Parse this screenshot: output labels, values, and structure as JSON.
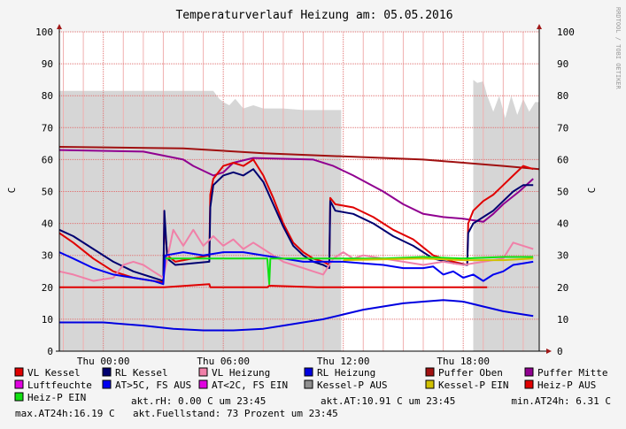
{
  "chart_data": {
    "type": "line",
    "title": "Temperaturverlauf Heizung am: 05.05.2016",
    "watermark": "RRDTOOL / TOBI OETIKER",
    "ylabel_left": "C",
    "ylabel_right": "C",
    "ylim": [
      0,
      100
    ],
    "xlim_hours": [
      -2.2,
      21.8
    ],
    "y_ticks": [
      "0",
      "10",
      "20",
      "30",
      "40",
      "50",
      "60",
      "70",
      "80",
      "90",
      "100"
    ],
    "x_ticks": [
      {
        "label": "Thu 00:00",
        "hour": 0
      },
      {
        "label": "Thu 06:00",
        "hour": 6
      },
      {
        "label": "Thu 12:00",
        "hour": 12
      },
      {
        "label": "Thu 18:00",
        "hour": 18
      }
    ],
    "grid": true,
    "colors": {
      "background": "#f4f4f4",
      "canvas": "#ffffff",
      "grid_minor": "#f0b0b0",
      "grid_major": "#e07070",
      "area": "#d6d6d6",
      "axis": "#000000",
      "arrow": "#a01818"
    },
    "area_series": {
      "name": "Fuellstand",
      "color": "#d6d6d6",
      "points": [
        [
          -2.2,
          81.5
        ],
        [
          5.5,
          81.5
        ],
        [
          5.8,
          79
        ],
        [
          6.0,
          78
        ],
        [
          6.3,
          77
        ],
        [
          6.6,
          79
        ],
        [
          7.0,
          76
        ],
        [
          7.5,
          77
        ],
        [
          8.0,
          76
        ],
        [
          9.0,
          76
        ],
        [
          10.0,
          75.5
        ],
        [
          11.9,
          75.5
        ],
        [
          11.9,
          0
        ],
        [
          18.5,
          0
        ],
        [
          18.5,
          85
        ],
        [
          18.7,
          84
        ],
        [
          19.0,
          84.5
        ],
        [
          19.2,
          80
        ],
        [
          19.5,
          75
        ],
        [
          19.8,
          80
        ],
        [
          20.1,
          73
        ],
        [
          20.4,
          80
        ],
        [
          20.7,
          74
        ],
        [
          21.0,
          79
        ],
        [
          21.3,
          75
        ],
        [
          21.6,
          78
        ],
        [
          21.8,
          78
        ]
      ]
    },
    "series": [
      {
        "name": "Puffer Oben",
        "color": "#a01010",
        "points": [
          [
            -2.2,
            64
          ],
          [
            4,
            63.5
          ],
          [
            8,
            62
          ],
          [
            12,
            61
          ],
          [
            16,
            60
          ],
          [
            20,
            58
          ],
          [
            21.8,
            57
          ]
        ]
      },
      {
        "name": "Puffer Mitte",
        "color": "#900090",
        "points": [
          [
            -2.2,
            63
          ],
          [
            2,
            62.5
          ],
          [
            4,
            60
          ],
          [
            4.5,
            58
          ],
          [
            5.5,
            55
          ],
          [
            6.0,
            56
          ],
          [
            6.5,
            59
          ],
          [
            7.5,
            60.5
          ],
          [
            10.5,
            60
          ],
          [
            11.5,
            58
          ],
          [
            12.5,
            55
          ],
          [
            14,
            50
          ],
          [
            15,
            46
          ],
          [
            16,
            43
          ],
          [
            17,
            42
          ],
          [
            18,
            41.5
          ],
          [
            19.0,
            40.5
          ],
          [
            19.5,
            43
          ],
          [
            20,
            46
          ],
          [
            20.8,
            50
          ],
          [
            21.5,
            54
          ]
        ]
      },
      {
        "name": "VL Kessel",
        "color": "#e00000",
        "points": [
          [
            -2.2,
            37
          ],
          [
            -1.5,
            34
          ],
          [
            -0.5,
            29
          ],
          [
            0.5,
            25
          ],
          [
            1.5,
            23
          ],
          [
            2.5,
            22
          ],
          [
            3.0,
            21.5
          ],
          [
            3.05,
            41
          ],
          [
            3.2,
            30
          ],
          [
            3.6,
            28
          ],
          [
            5.3,
            30
          ],
          [
            5.35,
            49
          ],
          [
            5.5,
            54
          ],
          [
            6.0,
            58
          ],
          [
            6.5,
            59
          ],
          [
            7.0,
            58
          ],
          [
            7.5,
            60
          ],
          [
            8.0,
            55
          ],
          [
            8.5,
            48
          ],
          [
            9.0,
            40
          ],
          [
            9.5,
            34
          ],
          [
            10.0,
            31
          ],
          [
            10.5,
            29
          ],
          [
            11.0,
            28
          ],
          [
            11.3,
            27
          ],
          [
            11.35,
            48
          ],
          [
            11.6,
            46
          ],
          [
            12.5,
            45
          ],
          [
            13.5,
            42
          ],
          [
            14.5,
            38
          ],
          [
            15.5,
            35
          ],
          [
            16.5,
            30
          ],
          [
            17.5,
            28
          ],
          [
            18.2,
            27
          ],
          [
            18.25,
            40
          ],
          [
            18.5,
            44
          ],
          [
            19.0,
            47
          ],
          [
            19.5,
            49
          ],
          [
            20.0,
            52
          ],
          [
            20.5,
            55
          ],
          [
            21.0,
            58
          ],
          [
            21.5,
            57
          ]
        ]
      },
      {
        "name": "RL Kessel",
        "color": "#000070",
        "points": [
          [
            -2.2,
            38
          ],
          [
            -1.5,
            36
          ],
          [
            -0.5,
            32
          ],
          [
            0.5,
            28
          ],
          [
            1.5,
            25
          ],
          [
            2.5,
            23
          ],
          [
            3.0,
            22
          ],
          [
            3.05,
            44
          ],
          [
            3.2,
            29
          ],
          [
            3.6,
            27
          ],
          [
            5.3,
            28
          ],
          [
            5.35,
            45
          ],
          [
            5.5,
            52
          ],
          [
            6.0,
            55
          ],
          [
            6.5,
            56
          ],
          [
            7.0,
            55
          ],
          [
            7.5,
            57
          ],
          [
            8.0,
            53
          ],
          [
            8.5,
            46
          ],
          [
            9.0,
            39
          ],
          [
            9.5,
            33
          ],
          [
            10.0,
            30
          ],
          [
            10.5,
            28
          ],
          [
            11.0,
            27
          ],
          [
            11.3,
            26
          ],
          [
            11.35,
            47
          ],
          [
            11.6,
            44
          ],
          [
            12.5,
            43
          ],
          [
            13.5,
            40
          ],
          [
            14.5,
            36
          ],
          [
            15.5,
            33
          ],
          [
            16.5,
            29
          ],
          [
            17.5,
            27.5
          ],
          [
            18.2,
            27
          ],
          [
            18.25,
            37
          ],
          [
            18.5,
            40
          ],
          [
            19.0,
            42
          ],
          [
            19.5,
            44
          ],
          [
            20.0,
            47
          ],
          [
            20.5,
            50
          ],
          [
            21.0,
            52
          ],
          [
            21.5,
            52
          ]
        ]
      },
      {
        "name": "VL Heizung",
        "color": "#f080a8",
        "points": [
          [
            -2.2,
            25
          ],
          [
            -1.5,
            24
          ],
          [
            -0.5,
            22
          ],
          [
            0.5,
            23
          ],
          [
            1.0,
            27
          ],
          [
            1.5,
            28
          ],
          [
            2.0,
            27
          ],
          [
            2.5,
            25
          ],
          [
            3.0,
            23
          ],
          [
            3.5,
            38
          ],
          [
            4.0,
            33
          ],
          [
            4.5,
            38
          ],
          [
            5.0,
            33
          ],
          [
            5.5,
            36
          ],
          [
            6.0,
            33
          ],
          [
            6.5,
            35
          ],
          [
            7.0,
            32
          ],
          [
            7.5,
            34
          ],
          [
            8.0,
            32
          ],
          [
            8.5,
            30
          ],
          [
            9.0,
            28
          ],
          [
            9.5,
            27
          ],
          [
            10.0,
            26
          ],
          [
            10.5,
            25
          ],
          [
            11.0,
            24
          ],
          [
            11.5,
            29
          ],
          [
            12.0,
            31
          ],
          [
            12.5,
            29
          ],
          [
            13.0,
            30
          ],
          [
            14.0,
            29
          ],
          [
            15.0,
            28
          ],
          [
            16.0,
            27
          ],
          [
            17.0,
            28
          ],
          [
            18.0,
            27
          ],
          [
            19.0,
            28
          ],
          [
            20.0,
            29
          ],
          [
            20.5,
            34
          ],
          [
            21.0,
            33
          ],
          [
            21.5,
            32
          ]
        ]
      },
      {
        "name": "RL Heizung",
        "color": "#0000e0",
        "points": [
          [
            -2.2,
            9
          ],
          [
            0,
            9
          ],
          [
            2,
            8
          ],
          [
            3.5,
            7
          ],
          [
            5,
            6.5
          ],
          [
            6.5,
            6.5
          ],
          [
            8,
            7
          ],
          [
            9,
            8
          ],
          [
            10,
            9
          ],
          [
            11,
            10
          ],
          [
            12,
            11.5
          ],
          [
            13,
            13
          ],
          [
            14,
            14
          ],
          [
            15,
            15
          ],
          [
            16,
            15.5
          ],
          [
            17,
            16
          ],
          [
            18,
            15.5
          ],
          [
            19,
            14
          ],
          [
            20,
            12.5
          ],
          [
            21,
            11.5
          ],
          [
            21.5,
            11
          ]
        ]
      },
      {
        "name": "AT>5C, FS AUS",
        "color": "#0000f0",
        "points": [
          [
            -2.2,
            31
          ],
          [
            -1.5,
            29
          ],
          [
            -0.5,
            26
          ],
          [
            0.5,
            24
          ],
          [
            1.5,
            23
          ],
          [
            2.5,
            22
          ],
          [
            3.0,
            21
          ],
          [
            3.1,
            30
          ],
          [
            4.0,
            31
          ],
          [
            5.0,
            30
          ],
          [
            6.0,
            31
          ],
          [
            7.0,
            31
          ],
          [
            8.0,
            30
          ],
          [
            9.0,
            29
          ],
          [
            10.0,
            28
          ],
          [
            11.0,
            28
          ],
          [
            12.0,
            28
          ],
          [
            13.0,
            27.5
          ],
          [
            14.0,
            27
          ],
          [
            15.0,
            26
          ],
          [
            16.0,
            26
          ],
          [
            16.5,
            26.5
          ],
          [
            17.0,
            24
          ],
          [
            17.5,
            25
          ],
          [
            18.0,
            23
          ],
          [
            18.5,
            24
          ],
          [
            19.0,
            22
          ],
          [
            19.5,
            24
          ],
          [
            20.0,
            25
          ],
          [
            20.5,
            27
          ],
          [
            21.0,
            27.5
          ],
          [
            21.5,
            28
          ]
        ]
      },
      {
        "name": "Heiz-P EIN",
        "color": "#10e010",
        "points": [
          [
            3.1,
            29
          ],
          [
            7.3,
            29
          ],
          [
            8.2,
            29
          ],
          [
            8.3,
            21
          ],
          [
            8.35,
            29
          ],
          [
            12.0,
            29
          ],
          [
            14.0,
            29
          ],
          [
            16.0,
            29.5
          ],
          [
            18.0,
            29
          ],
          [
            20.0,
            29.5
          ],
          [
            21.5,
            29.5
          ]
        ]
      },
      {
        "name": "Kessel-P EIN",
        "color": "#d0c000",
        "points": [
          [
            12.0,
            28.5
          ],
          [
            16.0,
            29.0
          ],
          [
            18.0,
            28.5
          ],
          [
            20.0,
            28.5
          ],
          [
            21.5,
            29.0
          ]
        ]
      },
      {
        "name": "Heiz-P AUS",
        "color": "#e00000",
        "points": [
          [
            -2.2,
            20
          ],
          [
            3.0,
            20
          ],
          [
            3.05,
            20
          ],
          [
            5.3,
            21
          ],
          [
            5.35,
            20
          ],
          [
            5.6,
            20
          ],
          [
            8.2,
            20
          ],
          [
            8.3,
            20.5
          ],
          [
            10.7,
            20
          ],
          [
            11.3,
            20
          ],
          [
            18.3,
            20
          ],
          [
            19.2,
            20
          ],
          [
            19.2,
            20
          ]
        ]
      }
    ],
    "legend": [
      {
        "label": "VL Kessel",
        "color": "#e00000"
      },
      {
        "label": "RL Kessel",
        "color": "#000070"
      },
      {
        "label": "VL Heizung",
        "color": "#f080a8"
      },
      {
        "label": "RL Heizung",
        "color": "#0000e0"
      },
      {
        "label": "Puffer Oben",
        "color": "#a01010"
      },
      {
        "label": "Puffer Mitte",
        "color": "#900090"
      },
      {
        "label": "Luftfeuchte",
        "color": "#e000e0"
      },
      {
        "label": "AT>5C, FS AUS",
        "color": "#0000f0"
      },
      {
        "label": "AT<2C, FS EIN",
        "color": "#e000e0"
      },
      {
        "label": "Kessel-P AUS",
        "color": "#909090"
      },
      {
        "label": "Kessel-P EIN",
        "color": "#d0c000"
      },
      {
        "label": "Heiz-P AUS",
        "color": "#e00000"
      },
      {
        "label": "Heiz-P EIN",
        "color": "#10e010"
      }
    ],
    "status": {
      "rh": "akt.rH: 0.00 C um 23:45",
      "at": "akt.AT:10.91 C um 23:45",
      "min_at": "min.AT24h: 6.31 C",
      "max_at": "max.AT24h:16.19 C",
      "fuellstand": "akt.Fuellstand:   73 Prozent um 23:45"
    }
  }
}
